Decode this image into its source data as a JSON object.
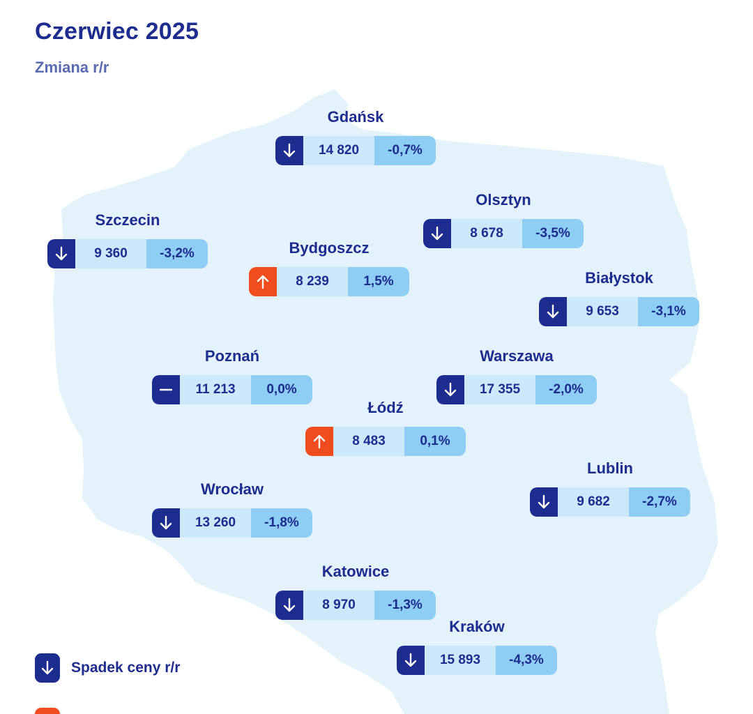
{
  "header": {
    "title": "Czerwiec 2025",
    "subtitle": "Zmiana r/r"
  },
  "colors": {
    "navy": "#1d2c8f",
    "orange_up": "#f04c1e",
    "map_fill": "#e4f2fc",
    "price_bg": "#cce9fb",
    "change_bg": "#8ecdf4"
  },
  "cities": [
    {
      "name": "Gdańsk",
      "price": "14 820",
      "change": "-0,7%",
      "trend": "down"
    },
    {
      "name": "Olsztyn",
      "price": "8 678",
      "change": "-3,5%",
      "trend": "down"
    },
    {
      "name": "Szczecin",
      "price": "9 360",
      "change": "-3,2%",
      "trend": "down"
    },
    {
      "name": "Bydgoszcz",
      "price": "8 239",
      "change": "1,5%",
      "trend": "up"
    },
    {
      "name": "Białystok",
      "price": "9 653",
      "change": "-3,1%",
      "trend": "down"
    },
    {
      "name": "Poznań",
      "price": "11 213",
      "change": "0,0%",
      "trend": "flat"
    },
    {
      "name": "Warszawa",
      "price": "17 355",
      "change": "-2,0%",
      "trend": "down"
    },
    {
      "name": "Łódź",
      "price": "8 483",
      "change": "0,1%",
      "trend": "up"
    },
    {
      "name": "Lublin",
      "price": "9 682",
      "change": "-2,7%",
      "trend": "down"
    },
    {
      "name": "Wrocław",
      "price": "13 260",
      "change": "-1,8%",
      "trend": "down"
    },
    {
      "name": "Katowice",
      "price": "8 970",
      "change": "-1,3%",
      "trend": "down"
    },
    {
      "name": "Kraków",
      "price": "15 893",
      "change": "-4,3%",
      "trend": "down"
    }
  ],
  "legend": {
    "down_label": "Spadek ceny r/r",
    "up_label": ""
  }
}
